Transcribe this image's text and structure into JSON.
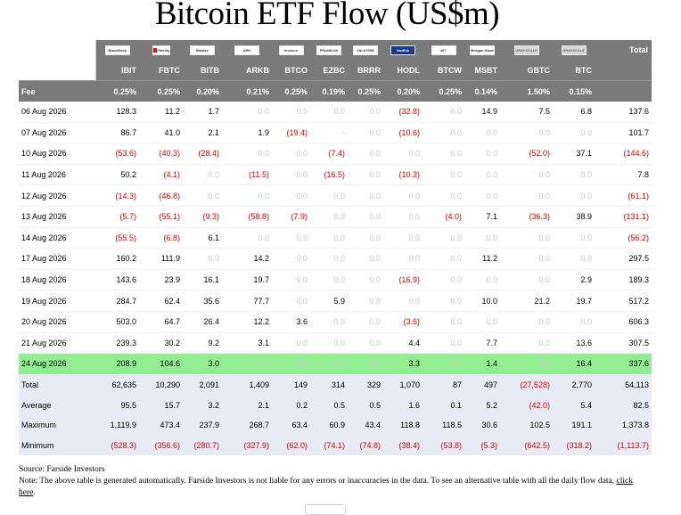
{
  "title": "Bitcoin ETF Flow (US$m)",
  "logos": [
    {
      "icon": "blackrock-logo-icon",
      "text": "BlackRock",
      "style": "plain"
    },
    {
      "icon": "fidelity-logo-icon",
      "text": "Fidelity",
      "style": "fid"
    },
    {
      "icon": "bitwise-logo-icon",
      "text": "Bitwise",
      "style": "plain"
    },
    {
      "icon": "ark-logo-icon",
      "text": "ARK",
      "style": "plain"
    },
    {
      "icon": "invesco-logo-icon",
      "text": "Invesco",
      "style": "plain"
    },
    {
      "icon": "franklin-logo-icon",
      "text": "FRANKLIN",
      "style": "plain"
    },
    {
      "icon": "valkyrie-logo-icon",
      "text": "VALKYRIE",
      "style": "plain"
    },
    {
      "icon": "vaneck-logo-icon",
      "text": "VanEck",
      "style": "vaneck"
    },
    {
      "icon": "wisdomtree-logo-icon",
      "text": "WT",
      "style": "plain"
    },
    {
      "icon": "morgan-stanley-logo-icon",
      "text": "Morgan Stanley",
      "style": "plain"
    },
    {
      "icon": "grayscale-logo-icon",
      "text": "GRAYSCALE",
      "style": "grey"
    },
    {
      "icon": "grayscale-mini-logo-icon",
      "text": "GRAYSCALE",
      "style": "grey"
    }
  ],
  "total_label": "Total",
  "tickers": [
    "IBIT",
    "FBTC",
    "BITB",
    "ARKB",
    "BTCO",
    "EZBC",
    "BRRR",
    "HODL",
    "BTCW",
    "MSBT",
    "GBTC",
    "BTC"
  ],
  "fee": {
    "label": "Fee",
    "values": [
      "0.25%",
      "0.25%",
      "0.20%",
      "0.21%",
      "0.25%",
      "0.19%",
      "0.25%",
      "0.20%",
      "0.25%",
      "0.14%",
      "1.50%",
      "0.15%"
    ]
  },
  "rows": [
    {
      "date": "06 Aug 2026",
      "values": [
        "128.3",
        "11.2",
        "1.7",
        "0.0",
        "0.0",
        "0.0",
        "0.0",
        "(32.8)",
        "0.0",
        "14.9",
        "7.5",
        "6.8"
      ],
      "total": "137.6"
    },
    {
      "date": "07 Aug 2026",
      "values": [
        "86.7",
        "41.0",
        "2.1",
        "1.9",
        "(19.4)",
        "-",
        "0.0",
        "(10.6)",
        "0.0",
        "0.0",
        "0.0",
        "0.0"
      ],
      "total": "101.7"
    },
    {
      "date": "10 Aug 2026",
      "values": [
        "(53.6)",
        "(40.3)",
        "(28.4)",
        "0.0",
        "0.0",
        "(7.4)",
        "0.0",
        "0.0",
        "0.0",
        "0.0",
        "(52.0)",
        "37.1"
      ],
      "total": "(144.6)"
    },
    {
      "date": "11 Aug 2026",
      "values": [
        "50.2",
        "(4.1)",
        "0.0",
        "(11.5)",
        "0.0",
        "(16.5)",
        "0.0",
        "(10.3)",
        "0.0",
        "0.0",
        "0.0",
        "0.0"
      ],
      "total": "7.8"
    },
    {
      "date": "12 Aug 2026",
      "values": [
        "(14.3)",
        "(46.8)",
        "0.0",
        "0.0",
        "0.0",
        "0.0",
        "0.0",
        "0.0",
        "0.0",
        "0.0",
        "0.0",
        "0.0"
      ],
      "total": "(61.1)"
    },
    {
      "date": "13 Aug 2026",
      "values": [
        "(5.7)",
        "(55.1)",
        "(9.3)",
        "(58.8)",
        "(7.9)",
        "0.0",
        "0.0",
        "0.0",
        "(4.0)",
        "7.1",
        "(36.3)",
        "38.9"
      ],
      "total": "(131.1)"
    },
    {
      "date": "14 Aug 2026",
      "values": [
        "(55.5)",
        "(6.8)",
        "6.1",
        "0.0",
        "0.0",
        "0.0",
        "0.0",
        "0.0",
        "0.0",
        "0.0",
        "0.0",
        "0.0"
      ],
      "total": "(56.2)"
    },
    {
      "date": "17 Aug 2026",
      "values": [
        "160.2",
        "111.9",
        "0.0",
        "14.2",
        "0.0",
        "0.0",
        "0.0",
        "0.0",
        "0.0",
        "11.2",
        "0.0",
        "0.0"
      ],
      "total": "297.5"
    },
    {
      "date": "18 Aug 2026",
      "values": [
        "143.6",
        "23.9",
        "16.1",
        "19.7",
        "0.0",
        "0.0",
        "0.0",
        "(16.9)",
        "0.0",
        "0.0",
        "0.0",
        "2.9"
      ],
      "total": "189.3"
    },
    {
      "date": "19 Aug 2026",
      "values": [
        "284.7",
        "62.4",
        "35.6",
        "77.7",
        "0.0",
        "5.9",
        "0.0",
        "0.0",
        "0.0",
        "10.0",
        "21.2",
        "19.7"
      ],
      "total": "517.2"
    },
    {
      "date": "20 Aug 2026",
      "values": [
        "503.0",
        "64.7",
        "26.4",
        "12.2",
        "3.6",
        "0.0",
        "0.0",
        "(3.6)",
        "0.0",
        "0.0",
        "0.0",
        "0.0"
      ],
      "total": "606.3"
    },
    {
      "date": "21 Aug 2026",
      "values": [
        "239.3",
        "30.2",
        "9.2",
        "3.1",
        "0.0",
        "0.0",
        "0.0",
        "4.4",
        "0.0",
        "7.7",
        "0.0",
        "13.6"
      ],
      "total": "307.5"
    },
    {
      "date": "24 Aug 2026",
      "values": [
        "208.9",
        "104.6",
        "3.0",
        "0.0",
        "0.0",
        "0.0",
        "0.0",
        "3.3",
        "0.0",
        "1.4",
        "0.0",
        "16.4"
      ],
      "total": "337.6",
      "highlight": true
    }
  ],
  "summary": [
    {
      "label": "Total",
      "values": [
        "62,635",
        "10,290",
        "2,091",
        "1,409",
        "149",
        "314",
        "329",
        "1,070",
        "87",
        "497",
        "(27,528)",
        "2,770"
      ],
      "total": "54,113"
    },
    {
      "label": "Average",
      "values": [
        "95.5",
        "15.7",
        "3.2",
        "2.1",
        "0.2",
        "0.5",
        "0.5",
        "1.6",
        "0.1",
        "5.2",
        "(42.0)",
        "5.4"
      ],
      "total": "82.5"
    },
    {
      "label": "Maximum",
      "values": [
        "1,119.9",
        "473.4",
        "237.9",
        "268.7",
        "63.4",
        "60.9",
        "43.4",
        "118.8",
        "118.5",
        "30.6",
        "102.5",
        "191.1"
      ],
      "total": "1,373.8"
    },
    {
      "label": "Minimum",
      "values": [
        "(528.3)",
        "(356.6)",
        "(280.7)",
        "(327.9)",
        "(62.0)",
        "(74.1)",
        "(74.8)",
        "(38.4)",
        "(53.8)",
        "(5.3)",
        "(642.5)",
        "(318.2)"
      ],
      "total": "(1,113.7)"
    }
  ],
  "notes": {
    "source": "Source: Farside Investors",
    "note": "Note: The above table is generated automatically. Farside Investors is not liable for any errors or inaccuracies in the data. To see an alternative table with all the daily flow data, ",
    "link_text": "click here",
    "suffix": "."
  }
}
